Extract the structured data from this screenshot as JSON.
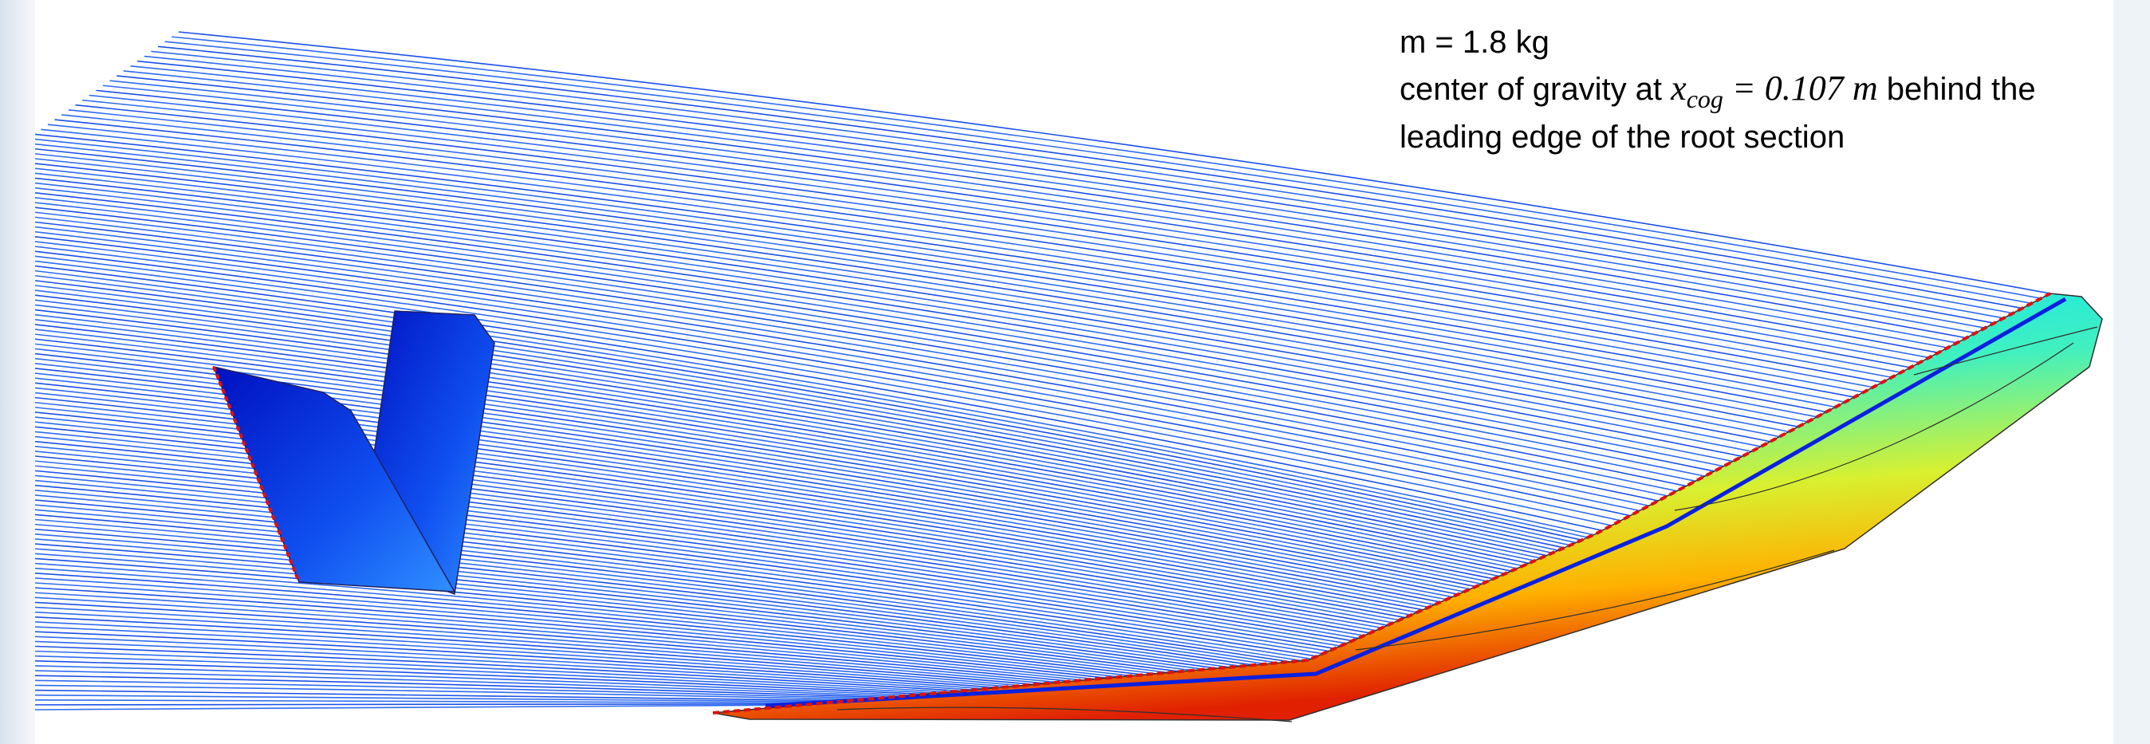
{
  "annotation": {
    "line1": "m = 1.8 kg",
    "line2_prefix": "center of gravity at",
    "math": {
      "symbol": "x",
      "subscript": "cog",
      "equals": "= 0.107",
      "unit": "m"
    },
    "line2_suffix": "behind the",
    "line3": "leading edge of the root section"
  }
}
